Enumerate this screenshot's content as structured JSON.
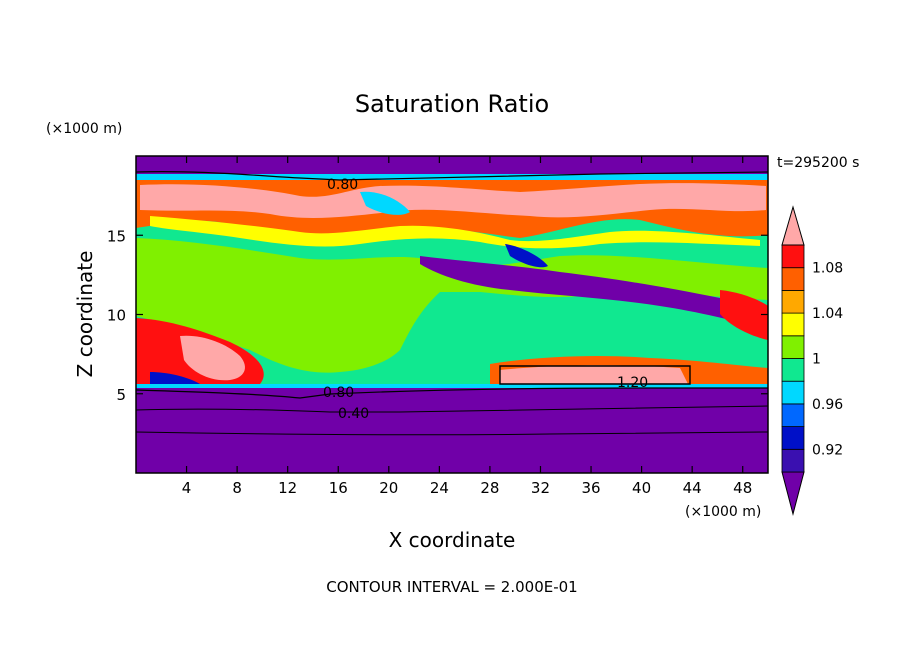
{
  "chart_data": {
    "type": "heatmap",
    "title": "Saturation Ratio",
    "xlabel": "X coordinate",
    "ylabel": "Z coordinate",
    "x_unit": "(×1000 m)",
    "y_unit": "(×1000 m)",
    "time_label": "t=295200 s",
    "footer": "CONTOUR INTERVAL = 2.000E-01",
    "xlim": [
      0,
      50
    ],
    "ylim": [
      0,
      20
    ],
    "x_ticks": [
      4,
      8,
      12,
      16,
      20,
      24,
      28,
      32,
      36,
      40,
      44,
      48
    ],
    "y_ticks": [
      5,
      10,
      15
    ],
    "colorbar": {
      "levels": [
        0.92,
        0.94,
        0.96,
        0.98,
        1.0,
        1.02,
        1.04,
        1.06,
        1.08,
        1.1
      ],
      "labels": [
        "0.92",
        "0.96",
        "1",
        "1.04",
        "1.08"
      ],
      "colors": [
        "#7000a8",
        "#3a10b0",
        "#0010c8",
        "#0068ff",
        "#00d8ff",
        "#10e890",
        "#80f000",
        "#ffff00",
        "#ffa800",
        "#ff6000",
        "#ff1010",
        "#ffa8a8"
      ]
    },
    "contour_labels": [
      "0.80",
      "0.80",
      "0.40",
      "1.20"
    ]
  }
}
